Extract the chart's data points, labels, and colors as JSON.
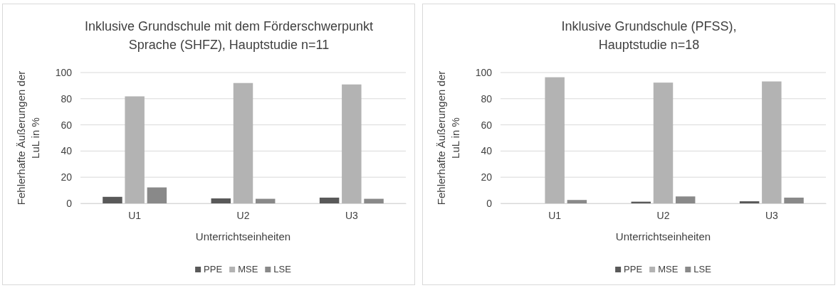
{
  "chart_data": [
    {
      "type": "bar",
      "title": "Inklusive Grundschule mit dem Förderschwerpunkt\nSprache (SHFZ), Hauptstudie n=11",
      "xlabel": "Unterrichtseinheiten",
      "ylabel": "Fehlerhafte Äußerungen der\nLuL in %",
      "categories": [
        "U1",
        "U2",
        "U3"
      ],
      "series": [
        {
          "name": "PPE",
          "color": "#595959",
          "values": [
            5,
            3.8,
            4.4
          ]
        },
        {
          "name": "MSE",
          "color": "#b3b3b3",
          "values": [
            81.8,
            92,
            90.9
          ]
        },
        {
          "name": "LSE",
          "color": "#898989",
          "values": [
            12.2,
            3.5,
            3.5
          ]
        }
      ],
      "ylim": [
        0,
        100
      ],
      "yticks": [
        0,
        20,
        40,
        60,
        80,
        100
      ],
      "grid": "y",
      "legend": "bottom"
    },
    {
      "type": "bar",
      "title": "Inklusive Grundschule (PFSS),\nHauptstudie n=18",
      "xlabel": "Unterrichtseinheiten",
      "ylabel": "Fehlerhafte Äußerungen der\nLuL in %",
      "categories": [
        "U1",
        "U2",
        "U3"
      ],
      "series": [
        {
          "name": "PPE",
          "color": "#595959",
          "values": [
            0,
            1.3,
            1.6
          ]
        },
        {
          "name": "MSE",
          "color": "#b3b3b3",
          "values": [
            96.4,
            92.3,
            93.2
          ]
        },
        {
          "name": "LSE",
          "color": "#898989",
          "values": [
            2.6,
            5.3,
            4.4
          ]
        }
      ],
      "ylim": [
        0,
        100
      ],
      "yticks": [
        0,
        20,
        40,
        60,
        80,
        100
      ],
      "grid": "y",
      "legend": "bottom"
    }
  ]
}
